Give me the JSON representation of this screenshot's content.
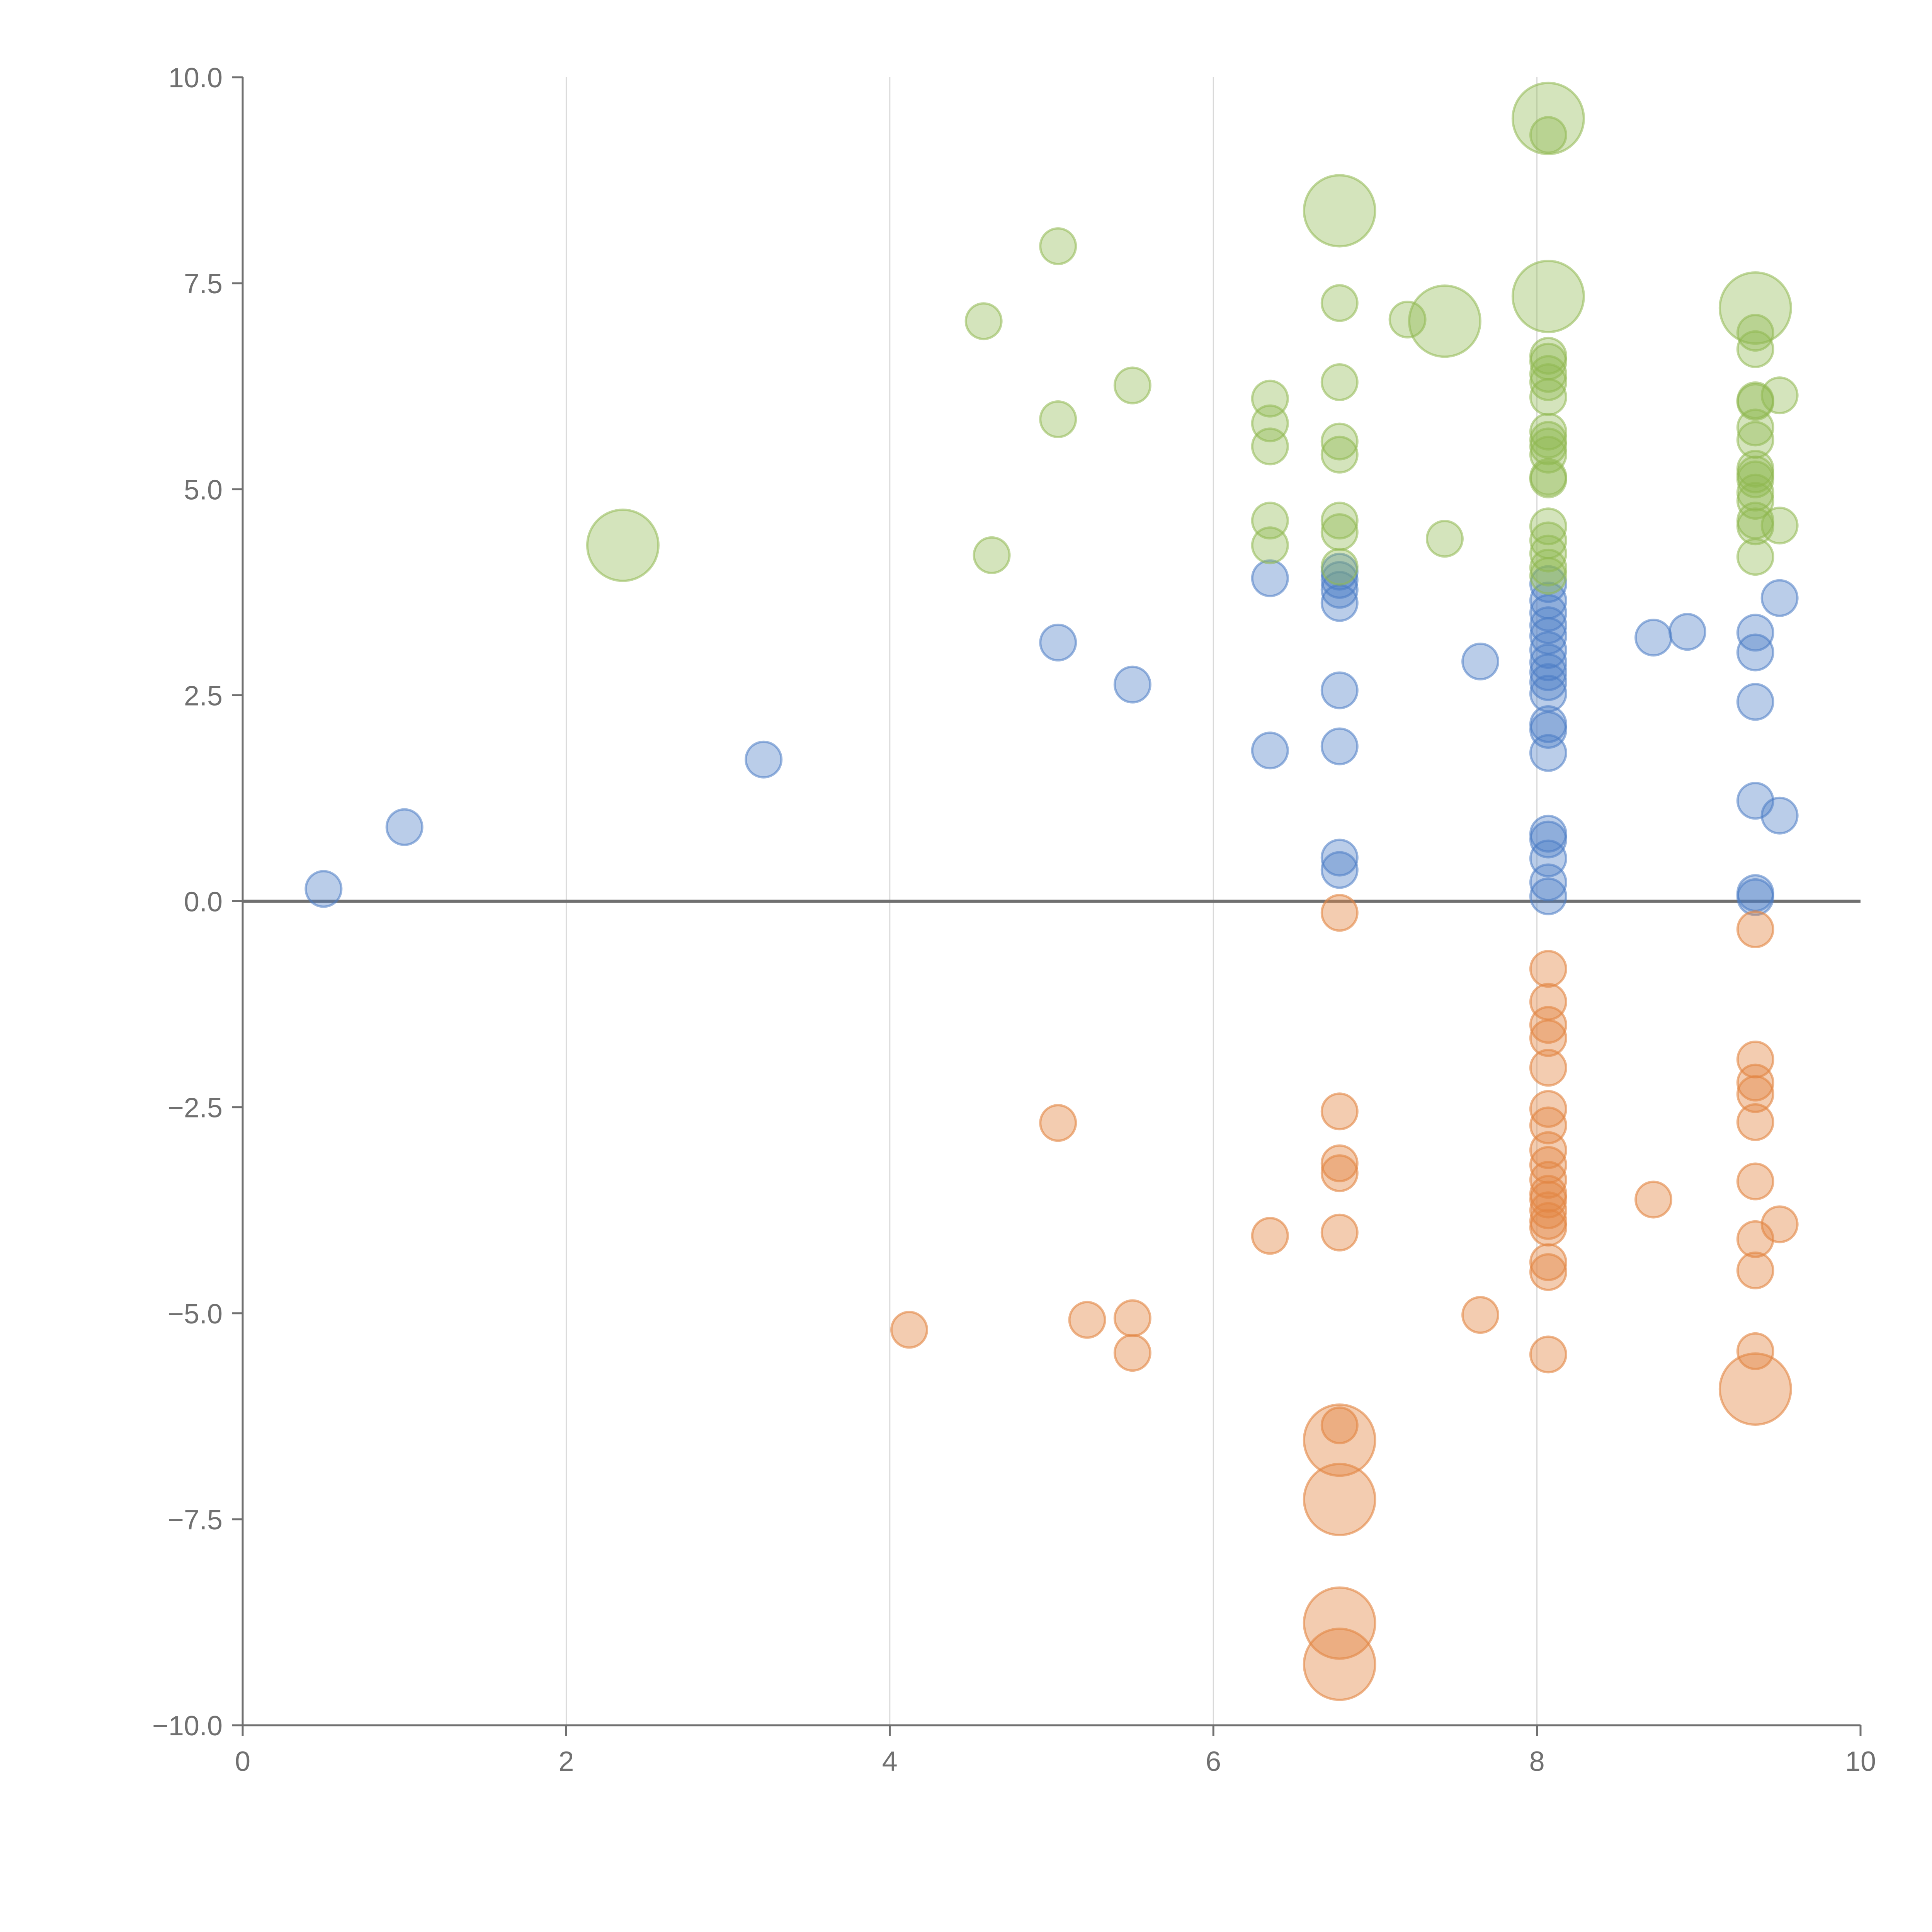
{
  "chart_data": {
    "type": "scatter",
    "title": "",
    "xlabel": "",
    "ylabel": "",
    "xlim": [
      0,
      10
    ],
    "ylim": [
      -10,
      10
    ],
    "x_ticks": [
      "0",
      "2",
      "4",
      "6",
      "8",
      "10"
    ],
    "y_ticks": [
      "10.0",
      "7.5",
      "5.0",
      "2.5",
      "0.0",
      "−2.5",
      "−5.0",
      "−7.5",
      "−10.0"
    ],
    "x_tick_values": [
      0,
      2,
      4,
      6,
      8,
      10
    ],
    "y_tick_values": [
      10,
      7.5,
      5,
      2.5,
      0,
      -2.5,
      -5,
      -7.5,
      -10
    ],
    "vertical_grid": [
      2,
      4,
      6,
      8
    ],
    "reference_line_y": 0,
    "series": [
      {
        "name": "blue",
        "color": "#4a7cc4",
        "points": [
          {
            "x": 0.5,
            "y": 0.15
          },
          {
            "x": 1.0,
            "y": 0.9
          },
          {
            "x": 3.22,
            "y": 1.72
          },
          {
            "x": 5.04,
            "y": 3.14
          },
          {
            "x": 5.5,
            "y": 2.63
          },
          {
            "x": 6.35,
            "y": 3.92
          },
          {
            "x": 6.35,
            "y": 1.83
          },
          {
            "x": 6.78,
            "y": 4.0
          },
          {
            "x": 6.78,
            "y": 3.9
          },
          {
            "x": 6.78,
            "y": 3.78
          },
          {
            "x": 6.78,
            "y": 3.62
          },
          {
            "x": 6.78,
            "y": 2.56
          },
          {
            "x": 6.78,
            "y": 1.88
          },
          {
            "x": 6.78,
            "y": 0.53
          },
          {
            "x": 6.78,
            "y": 0.38
          },
          {
            "x": 7.65,
            "y": 2.91
          },
          {
            "x": 8.07,
            "y": 3.85
          },
          {
            "x": 8.07,
            "y": 3.65
          },
          {
            "x": 8.07,
            "y": 3.5
          },
          {
            "x": 8.07,
            "y": 3.35
          },
          {
            "x": 8.07,
            "y": 3.22
          },
          {
            "x": 8.07,
            "y": 3.05
          },
          {
            "x": 8.07,
            "y": 2.9
          },
          {
            "x": 8.07,
            "y": 2.78
          },
          {
            "x": 8.07,
            "y": 2.66
          },
          {
            "x": 8.07,
            "y": 2.52
          },
          {
            "x": 8.07,
            "y": 2.15
          },
          {
            "x": 8.07,
            "y": 2.08
          },
          {
            "x": 8.07,
            "y": 1.8
          },
          {
            "x": 8.07,
            "y": 0.82
          },
          {
            "x": 8.07,
            "y": 0.75
          },
          {
            "x": 8.07,
            "y": 0.52
          },
          {
            "x": 8.07,
            "y": 0.23
          },
          {
            "x": 8.07,
            "y": 0.06
          },
          {
            "x": 8.72,
            "y": 3.2
          },
          {
            "x": 8.93,
            "y": 3.27
          },
          {
            "x": 9.35,
            "y": 3.26
          },
          {
            "x": 9.35,
            "y": 3.02
          },
          {
            "x": 9.35,
            "y": 2.42
          },
          {
            "x": 9.35,
            "y": 1.22
          },
          {
            "x": 9.35,
            "y": 0.1
          },
          {
            "x": 9.35,
            "y": 0.05
          },
          {
            "x": 9.5,
            "y": 3.68
          },
          {
            "x": 9.5,
            "y": 1.04
          }
        ]
      },
      {
        "name": "green",
        "color": "#8fb850",
        "points": [
          {
            "x": 2.35,
            "y": 4.32,
            "size": "large"
          },
          {
            "x": 4.58,
            "y": 7.04
          },
          {
            "x": 4.63,
            "y": 4.2
          },
          {
            "x": 5.04,
            "y": 7.95
          },
          {
            "x": 5.04,
            "y": 5.85
          },
          {
            "x": 5.5,
            "y": 6.26
          },
          {
            "x": 6.35,
            "y": 6.1
          },
          {
            "x": 6.35,
            "y": 5.8
          },
          {
            "x": 6.35,
            "y": 5.52
          },
          {
            "x": 6.35,
            "y": 4.62
          },
          {
            "x": 6.35,
            "y": 4.32
          },
          {
            "x": 6.78,
            "y": 8.38,
            "size": "large"
          },
          {
            "x": 6.78,
            "y": 7.26
          },
          {
            "x": 6.78,
            "y": 6.3
          },
          {
            "x": 6.78,
            "y": 5.58
          },
          {
            "x": 6.78,
            "y": 5.42
          },
          {
            "x": 6.78,
            "y": 4.62
          },
          {
            "x": 6.78,
            "y": 4.48
          },
          {
            "x": 6.78,
            "y": 4.06
          },
          {
            "x": 7.2,
            "y": 7.06
          },
          {
            "x": 7.43,
            "y": 7.04,
            "size": "large"
          },
          {
            "x": 7.43,
            "y": 4.4
          },
          {
            "x": 8.07,
            "y": 9.5,
            "size": "large"
          },
          {
            "x": 8.07,
            "y": 9.3
          },
          {
            "x": 8.07,
            "y": 7.34,
            "size": "large"
          },
          {
            "x": 8.07,
            "y": 6.62
          },
          {
            "x": 8.07,
            "y": 6.55
          },
          {
            "x": 8.07,
            "y": 6.4
          },
          {
            "x": 8.07,
            "y": 6.3
          },
          {
            "x": 8.07,
            "y": 6.12
          },
          {
            "x": 8.07,
            "y": 5.7
          },
          {
            "x": 8.07,
            "y": 5.6
          },
          {
            "x": 8.07,
            "y": 5.52
          },
          {
            "x": 8.07,
            "y": 5.42
          },
          {
            "x": 8.07,
            "y": 5.15
          },
          {
            "x": 8.07,
            "y": 5.12
          },
          {
            "x": 8.07,
            "y": 4.55
          },
          {
            "x": 8.07,
            "y": 4.38
          },
          {
            "x": 8.07,
            "y": 4.22
          },
          {
            "x": 8.07,
            "y": 4.05
          },
          {
            "x": 8.07,
            "y": 3.95
          },
          {
            "x": 9.35,
            "y": 7.2,
            "size": "large"
          },
          {
            "x": 9.35,
            "y": 6.9
          },
          {
            "x": 9.35,
            "y": 6.7
          },
          {
            "x": 9.35,
            "y": 6.08
          },
          {
            "x": 9.35,
            "y": 6.06
          },
          {
            "x": 9.35,
            "y": 5.75
          },
          {
            "x": 9.35,
            "y": 5.6
          },
          {
            "x": 9.35,
            "y": 5.25
          },
          {
            "x": 9.35,
            "y": 5.18
          },
          {
            "x": 9.35,
            "y": 5.12
          },
          {
            "x": 9.35,
            "y": 4.96
          },
          {
            "x": 9.35,
            "y": 4.86
          },
          {
            "x": 9.35,
            "y": 4.62
          },
          {
            "x": 9.35,
            "y": 4.55
          },
          {
            "x": 9.35,
            "y": 4.18
          },
          {
            "x": 9.5,
            "y": 6.14
          },
          {
            "x": 9.5,
            "y": 4.56
          }
        ]
      },
      {
        "name": "orange",
        "color": "#e28643",
        "points": [
          {
            "x": 4.12,
            "y": -5.2
          },
          {
            "x": 5.04,
            "y": -2.69
          },
          {
            "x": 5.22,
            "y": -5.08
          },
          {
            "x": 5.5,
            "y": -5.06
          },
          {
            "x": 5.5,
            "y": -5.48
          },
          {
            "x": 6.35,
            "y": -4.06
          },
          {
            "x": 6.78,
            "y": -0.14
          },
          {
            "x": 6.78,
            "y": -2.55
          },
          {
            "x": 6.78,
            "y": -3.18
          },
          {
            "x": 6.78,
            "y": -3.3
          },
          {
            "x": 6.78,
            "y": -4.02
          },
          {
            "x": 6.78,
            "y": -6.36
          },
          {
            "x": 6.78,
            "y": -6.54,
            "size": "large"
          },
          {
            "x": 6.78,
            "y": -7.26,
            "size": "large"
          },
          {
            "x": 6.78,
            "y": -8.76,
            "size": "large"
          },
          {
            "x": 6.78,
            "y": -9.26,
            "size": "large"
          },
          {
            "x": 7.65,
            "y": -5.02
          },
          {
            "x": 8.07,
            "y": -0.82
          },
          {
            "x": 8.07,
            "y": -1.22
          },
          {
            "x": 8.07,
            "y": -1.5
          },
          {
            "x": 8.07,
            "y": -1.66
          },
          {
            "x": 8.07,
            "y": -2.02
          },
          {
            "x": 8.07,
            "y": -2.52
          },
          {
            "x": 8.07,
            "y": -2.72
          },
          {
            "x": 8.07,
            "y": -3.02
          },
          {
            "x": 8.07,
            "y": -3.2
          },
          {
            "x": 8.07,
            "y": -3.38
          },
          {
            "x": 8.07,
            "y": -3.55
          },
          {
            "x": 8.07,
            "y": -3.62
          },
          {
            "x": 8.07,
            "y": -3.75
          },
          {
            "x": 8.07,
            "y": -3.88
          },
          {
            "x": 8.07,
            "y": -3.96
          },
          {
            "x": 8.07,
            "y": -4.38
          },
          {
            "x": 8.07,
            "y": -4.5
          },
          {
            "x": 8.07,
            "y": -5.5
          },
          {
            "x": 8.72,
            "y": -3.62
          },
          {
            "x": 9.35,
            "y": -0.34
          },
          {
            "x": 9.35,
            "y": -1.92
          },
          {
            "x": 9.35,
            "y": -2.2
          },
          {
            "x": 9.35,
            "y": -2.34
          },
          {
            "x": 9.35,
            "y": -2.68
          },
          {
            "x": 9.35,
            "y": -3.4
          },
          {
            "x": 9.35,
            "y": -4.1
          },
          {
            "x": 9.35,
            "y": -4.48
          },
          {
            "x": 9.35,
            "y": -5.46
          },
          {
            "x": 9.35,
            "y": -5.92,
            "size": "large"
          },
          {
            "x": 9.5,
            "y": -3.92
          }
        ]
      }
    ]
  }
}
